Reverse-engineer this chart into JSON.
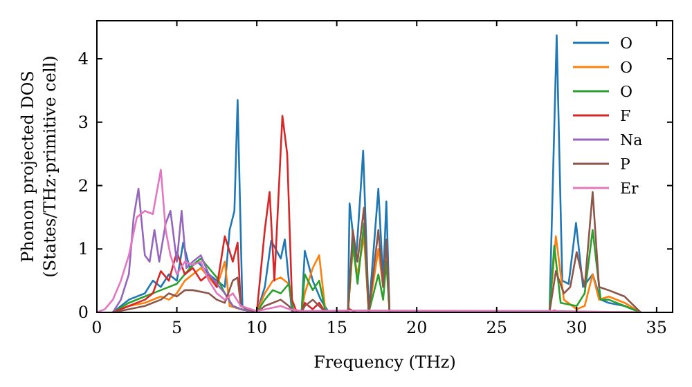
{
  "chart_data": {
    "type": "line",
    "xlabel": "Frequency (THz)",
    "ylabel": "Phonon projected DOS\n(States/THz·primitive cell)",
    "xlim": [
      0,
      36
    ],
    "ylim": [
      0,
      4.6
    ],
    "xticks": [
      0,
      5,
      10,
      15,
      20,
      25,
      30,
      35
    ],
    "yticks": [
      0,
      1,
      2,
      3,
      4
    ],
    "grid": false,
    "legend": "top right",
    "line_style": "solid",
    "series": [
      {
        "name": "O",
        "color": "#1f77b4",
        "x": [
          1,
          2,
          3,
          3.5,
          4,
          4.5,
          5,
          5.4,
          5.8,
          6.3,
          7,
          7.5,
          8,
          8.3,
          8.6,
          8.8,
          9.1,
          9.5,
          10,
          10.5,
          10.9,
          11.5,
          11.75,
          12.2,
          12.8,
          13,
          13.5,
          14,
          14.5,
          15.7,
          15.8,
          16.2,
          16.65,
          17,
          17.6,
          17.9,
          18.1,
          18.3,
          28.3,
          28.75,
          29.1,
          29.5,
          29.96,
          30.4,
          31,
          31.5,
          32,
          33,
          34
        ],
        "values": [
          0,
          0.2,
          0.3,
          0.5,
          0.4,
          0.6,
          0.5,
          1.1,
          0.7,
          0.8,
          0.6,
          0.5,
          0.4,
          1.3,
          1.6,
          3.35,
          0.1,
          0,
          0,
          0.4,
          1.13,
          0.85,
          1.15,
          0,
          0,
          0.97,
          0.5,
          0.2,
          0,
          0,
          1.72,
          0.8,
          2.55,
          0,
          1.95,
          0.5,
          1.75,
          0,
          0,
          4.37,
          0.5,
          0.45,
          1.41,
          0.4,
          0.6,
          0.2,
          0.15,
          0.1,
          0
        ]
      },
      {
        "name": "O",
        "color": "#ff7f0e",
        "x": [
          1,
          2,
          3,
          4,
          4.5,
          5,
          5.5,
          6,
          6.5,
          7,
          7.5,
          8,
          8.3,
          9,
          10,
          10.5,
          11,
          11.5,
          12,
          12.3,
          12.8,
          13,
          13.5,
          13.9,
          14.3,
          15.7,
          16,
          16.3,
          16.7,
          17,
          17.6,
          17.9,
          18.1,
          18.3,
          28.3,
          28.7,
          29.2,
          30,
          30.5,
          31,
          31.4,
          32,
          33,
          34
        ],
        "values": [
          0,
          0.1,
          0.15,
          0.25,
          0.2,
          0.3,
          0.5,
          0.6,
          0.7,
          0.55,
          0.4,
          0.8,
          0.1,
          0.05,
          0,
          0.3,
          0.5,
          0.55,
          0.45,
          0,
          0,
          0.3,
          0.7,
          0.9,
          0,
          0,
          1,
          0.6,
          1.2,
          0,
          1,
          0.4,
          1,
          0,
          0,
          1.2,
          0.2,
          0.05,
          0.1,
          0.6,
          0.2,
          0.25,
          0.15,
          0
        ]
      },
      {
        "name": "O",
        "color": "#2ca02c",
        "x": [
          1,
          2,
          3,
          4,
          5,
          5.5,
          6,
          6.5,
          7,
          7.5,
          8,
          8.5,
          9,
          10,
          10.5,
          11,
          11.5,
          12,
          12.3,
          12.8,
          13,
          13.5,
          13.9,
          14.3,
          15.7,
          16,
          16.3,
          16.7,
          17,
          17.6,
          17.9,
          18.1,
          18.3,
          28.3,
          28.6,
          29,
          30,
          30.5,
          31,
          31.5,
          32,
          33,
          34
        ],
        "values": [
          0,
          0.15,
          0.25,
          0.35,
          0.45,
          0.6,
          0.75,
          0.85,
          0.7,
          0.55,
          0.3,
          0.1,
          0.05,
          0,
          0.2,
          0.35,
          0.3,
          0.45,
          0,
          0,
          0.6,
          0.35,
          0.5,
          0,
          0,
          1.1,
          0.45,
          1.4,
          0,
          0.6,
          0.2,
          0.8,
          0,
          0,
          1.05,
          0.15,
          0.1,
          0.3,
          1.3,
          0.2,
          0.2,
          0.1,
          0
        ]
      },
      {
        "name": "F",
        "color": "#d62728",
        "x": [
          1,
          2,
          3,
          3.5,
          4,
          4.5,
          5,
          5.5,
          6,
          6.5,
          7,
          7.5,
          8,
          8.5,
          8.8,
          9,
          10,
          10.5,
          10.8,
          11.1,
          11.6,
          11.9,
          12.2,
          12.5,
          12.8,
          13,
          13.5,
          13.9,
          14.3,
          15.5,
          15.8,
          16.2,
          28.3,
          28.6,
          29,
          34
        ],
        "values": [
          0,
          0.1,
          0.2,
          0.3,
          0.65,
          0.5,
          0.95,
          0.6,
          0.7,
          0.5,
          0.6,
          0.4,
          1.2,
          0.8,
          1.1,
          0.1,
          0,
          1.3,
          1.9,
          0.5,
          3.1,
          2.5,
          0.2,
          0,
          0,
          0.15,
          0.05,
          0.15,
          0,
          0,
          0.05,
          0,
          0,
          0.03,
          0,
          0
        ]
      },
      {
        "name": "Na",
        "color": "#9467bd",
        "x": [
          1,
          1.5,
          2,
          2.3,
          2.6,
          3,
          3.3,
          3.6,
          3.9,
          4.3,
          4.6,
          5,
          5.3,
          5.6,
          6,
          6.5,
          7,
          7.5,
          8,
          8.5,
          9,
          10,
          34
        ],
        "values": [
          0,
          0.2,
          0.6,
          1.5,
          1.95,
          0.9,
          0.8,
          1.3,
          0.8,
          1.4,
          1.6,
          0.8,
          1.6,
          0.7,
          0.8,
          0.9,
          0.6,
          0.45,
          0.3,
          0.1,
          0.05,
          0,
          0
        ]
      },
      {
        "name": "P",
        "color": "#8c564b",
        "x": [
          1,
          2,
          3,
          4,
          4.5,
          5,
          5.5,
          6,
          7,
          7.5,
          8,
          8.5,
          8.8,
          9,
          10,
          10.5,
          11,
          11.5,
          12,
          12.3,
          12.8,
          13,
          13.5,
          13.9,
          14.3,
          15.7,
          16,
          16.3,
          16.7,
          17,
          17.6,
          17.9,
          18.1,
          18.3,
          28.3,
          28.7,
          29.2,
          29.6,
          30,
          30.5,
          31,
          31.4,
          32,
          32.5,
          33,
          34
        ],
        "values": [
          0,
          0.05,
          0.1,
          0.2,
          0.3,
          0.25,
          0.35,
          0.35,
          0.3,
          0.2,
          0.15,
          0.5,
          0.55,
          0.1,
          0,
          0.1,
          0.15,
          0.2,
          0.1,
          0,
          0,
          0.1,
          0.2,
          0.1,
          0,
          0,
          1.3,
          0.8,
          1.65,
          0,
          1.3,
          0.4,
          1.15,
          0,
          0,
          0.65,
          0.3,
          0.4,
          0.95,
          0.4,
          1.9,
          0.4,
          0.35,
          0.3,
          0.25,
          0
        ]
      },
      {
        "name": "Er",
        "color": "#e377c2",
        "x": [
          0,
          0.5,
          1,
          1.5,
          2,
          2.5,
          3,
          3.5,
          4,
          4.3,
          4.6,
          5,
          5.5,
          6,
          6.5,
          7,
          7.5,
          8,
          8.5,
          9,
          10,
          11.5,
          12,
          13,
          16,
          28.6,
          34
        ],
        "values": [
          0,
          0.05,
          0.2,
          0.5,
          0.9,
          1.5,
          1.6,
          1.55,
          2.25,
          1.3,
          0.9,
          0.6,
          0.8,
          0.75,
          0.8,
          0.5,
          0.3,
          0.2,
          0.3,
          0.1,
          0.02,
          0.1,
          0.05,
          0.02,
          0.03,
          0.02,
          0
        ]
      }
    ]
  }
}
